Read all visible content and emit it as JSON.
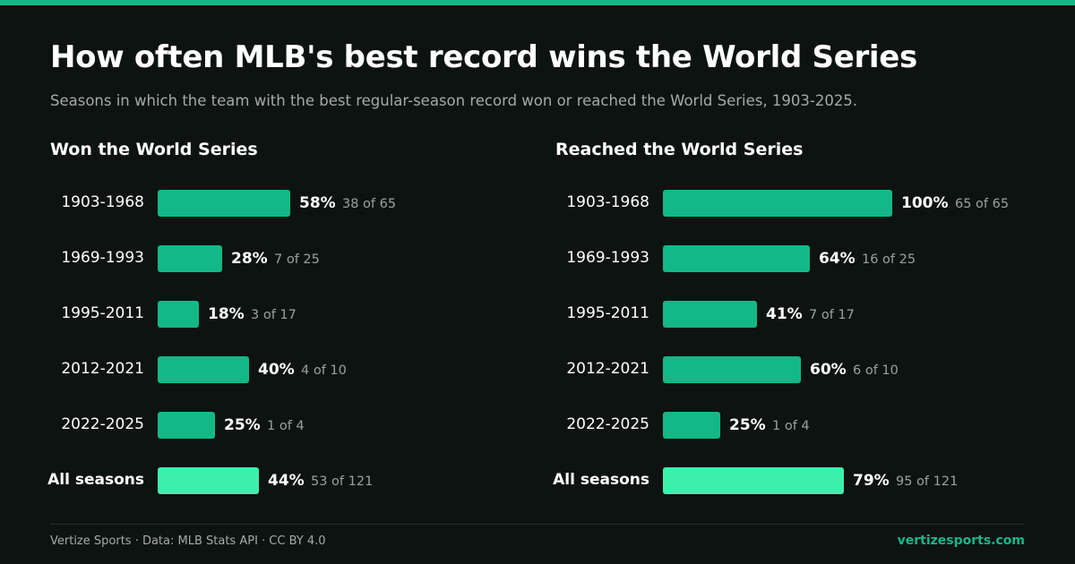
{
  "header": {
    "title": "How often MLB's best record wins the World Series",
    "subtitle": "Seasons in which the team with the best regular-season record won or reached the World Series, 1903-2025."
  },
  "colors": {
    "accent": "#14b886",
    "highlight": "#3ef0ad",
    "background": "#0d1311"
  },
  "chart_data": [
    {
      "type": "bar",
      "orientation": "horizontal",
      "title": "Won the World Series",
      "categories": [
        "1903-1968",
        "1969-1993",
        "1995-2011",
        "2012-2021",
        "2022-2025",
        "All seasons"
      ],
      "values": [
        58,
        28,
        18,
        40,
        25,
        44
      ],
      "value_labels": [
        "58%",
        "28%",
        "18%",
        "40%",
        "25%",
        "44%"
      ],
      "count_labels": [
        "38 of 65",
        "7 of 25",
        "3 of 17",
        "4 of 10",
        "1 of 4",
        "53 of 121"
      ],
      "xlim": [
        0,
        100
      ],
      "grid": false
    },
    {
      "type": "bar",
      "orientation": "horizontal",
      "title": "Reached the World Series",
      "categories": [
        "1903-1968",
        "1969-1993",
        "1995-2011",
        "2012-2021",
        "2022-2025",
        "All seasons"
      ],
      "values": [
        100,
        64,
        41,
        60,
        25,
        79
      ],
      "value_labels": [
        "100%",
        "64%",
        "41%",
        "60%",
        "25%",
        "79%"
      ],
      "count_labels": [
        "65 of 65",
        "16 of 25",
        "7 of 17",
        "6 of 10",
        "1 of 4",
        "95 of 121"
      ],
      "xlim": [
        0,
        100
      ],
      "grid": false
    }
  ],
  "footer": {
    "credit": "Vertize Sports · Data: MLB Stats API · CC BY 4.0",
    "site": "vertizesports.com"
  }
}
